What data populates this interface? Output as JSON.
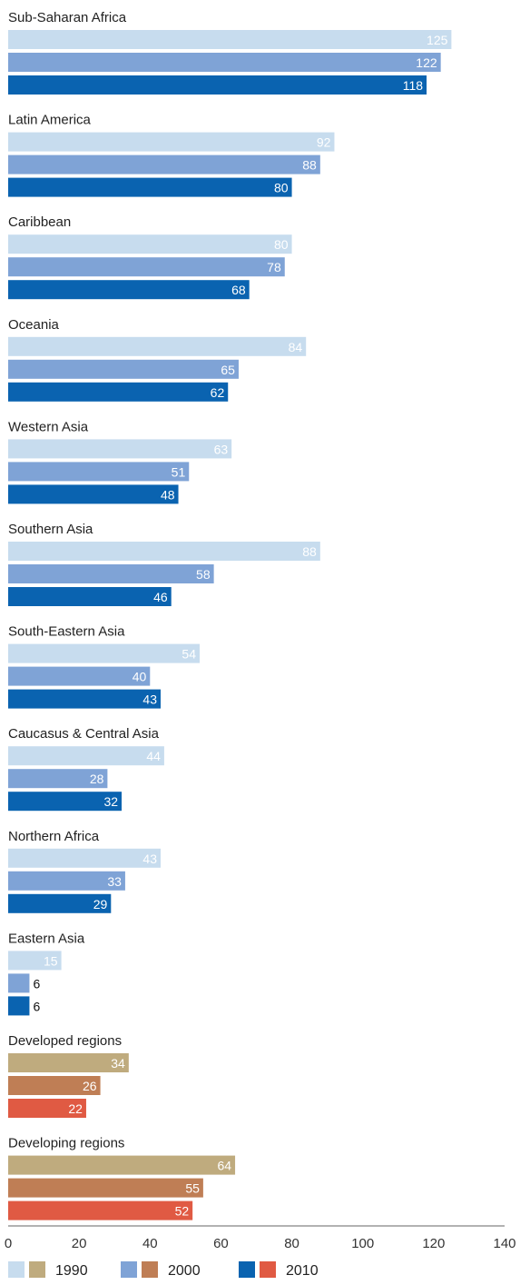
{
  "chart_data": {
    "type": "bar",
    "orientation": "horizontal",
    "xlim": [
      0,
      140
    ],
    "x_ticks": [
      0,
      20,
      40,
      60,
      80,
      100,
      120,
      140
    ],
    "grid": false,
    "legend_position": "bottom-left",
    "categories": [
      "Sub-Saharan Africa",
      "Latin America",
      "Caribbean",
      "Oceania",
      "Western Asia",
      "Southern Asia",
      "South-Eastern Asia",
      "Caucasus & Central Asia",
      "Northern Africa",
      "Eastern Asia",
      "Developed regions",
      "Developing regions"
    ],
    "series": [
      {
        "name": "1990",
        "values": [
          125,
          92,
          80,
          84,
          63,
          88,
          54,
          44,
          43,
          15,
          34,
          64
        ]
      },
      {
        "name": "2000",
        "values": [
          122,
          88,
          78,
          65,
          51,
          58,
          40,
          28,
          33,
          6,
          26,
          55
        ]
      },
      {
        "name": "2010",
        "values": [
          118,
          80,
          68,
          62,
          48,
          46,
          43,
          32,
          29,
          6,
          22,
          52
        ]
      }
    ],
    "colors": {
      "regions": [
        "#c7dcee",
        "#7fa3d6",
        "#0a63b0"
      ],
      "aggregates": [
        "#bfab7e",
        "#bf7e55",
        "#e05a43"
      ]
    },
    "legend": [
      {
        "label": "1990",
        "swatches": [
          "#c7dcee",
          "#bfab7e"
        ]
      },
      {
        "label": "2000",
        "swatches": [
          "#7fa3d6",
          "#bf7e55"
        ]
      },
      {
        "label": "2010",
        "swatches": [
          "#0a63b0",
          "#e05a43"
        ]
      }
    ]
  }
}
